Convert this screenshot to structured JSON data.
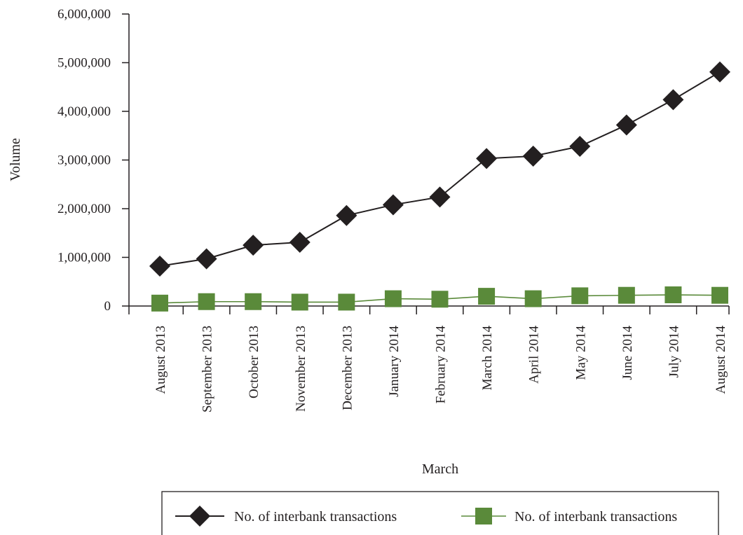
{
  "chart_data": {
    "type": "line",
    "title": "",
    "xlabel": "March",
    "ylabel": "Volume",
    "ylim": [
      0,
      6000000
    ],
    "yticks": [
      0,
      1000000,
      2000000,
      3000000,
      4000000,
      5000000,
      6000000
    ],
    "ytick_labels": [
      "0",
      "1,000,000",
      "2,000,000",
      "3,000,000",
      "4,000,000",
      "5,000,000",
      "6,000,000"
    ],
    "categories": [
      "August 2013",
      "September 2013",
      "October 2013",
      "November 2013",
      "December 2013",
      "January 2014",
      "February 2014",
      "March 2014",
      "April 2014",
      "May 2014",
      "June 2014",
      "July 2014",
      "August 2014"
    ],
    "grid": false,
    "legend_position": "bottom",
    "series": [
      {
        "name": "No. of interbank transactions",
        "marker": "diamond",
        "color": "#231f20",
        "values": [
          820000,
          970000,
          1250000,
          1310000,
          1860000,
          2080000,
          2240000,
          3030000,
          3080000,
          3280000,
          3720000,
          4240000,
          4810000
        ]
      },
      {
        "name": "No. of interbank transactions",
        "marker": "square",
        "color": "#5a8a3a",
        "values": [
          60000,
          90000,
          90000,
          80000,
          80000,
          150000,
          140000,
          200000,
          150000,
          210000,
          220000,
          230000,
          220000
        ]
      }
    ]
  }
}
